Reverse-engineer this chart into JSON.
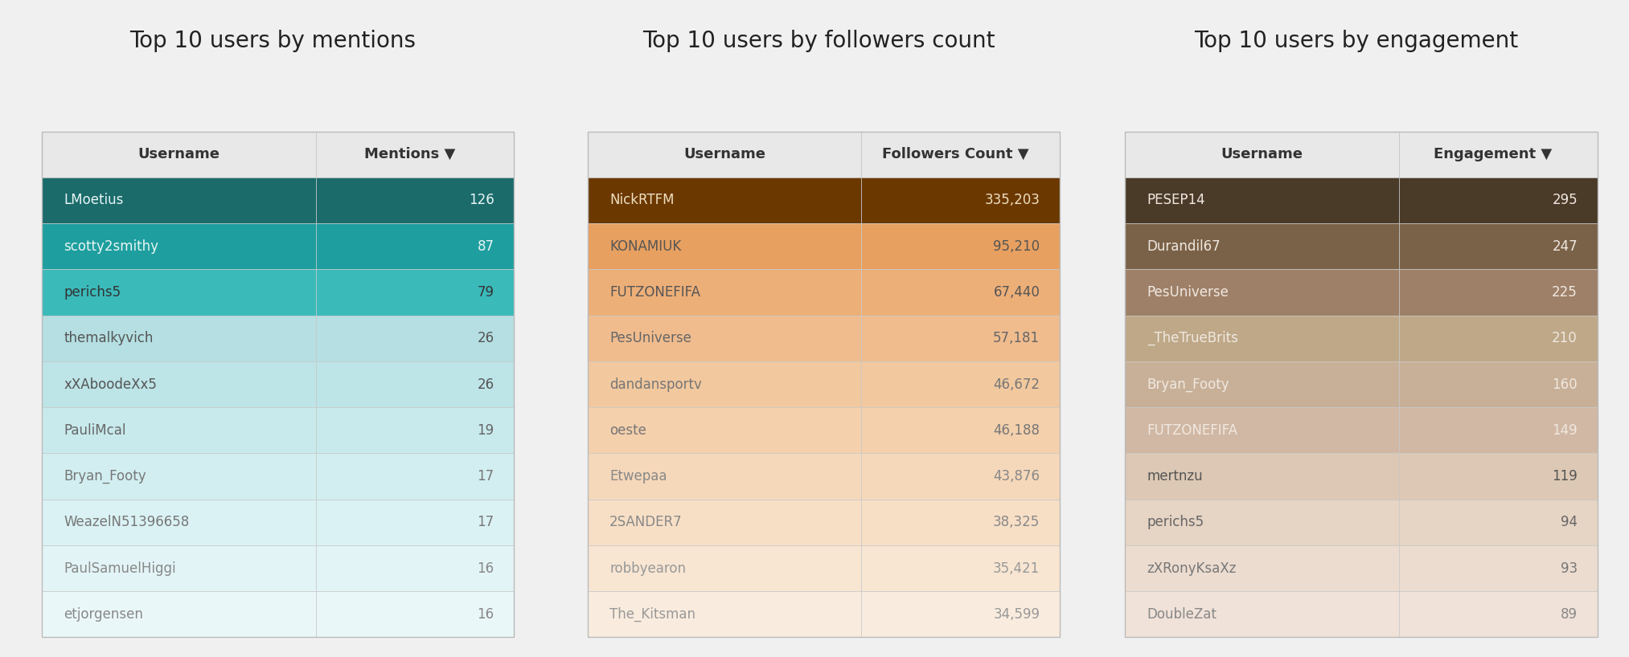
{
  "title1": "Top 10 users by mentions",
  "title2": "Top 10 users by followers count",
  "title3": "Top 10 users by engagement",
  "table1": {
    "col1": "Username",
    "col2": "Mentions",
    "rows": [
      [
        "LMoetius",
        "126"
      ],
      [
        "scotty2smithy",
        "87"
      ],
      [
        "perichs5",
        "79"
      ],
      [
        "themalkyvich",
        "26"
      ],
      [
        "xXAboodeXx5",
        "26"
      ],
      [
        "PauliMcal",
        "19"
      ],
      [
        "Bryan_Footy",
        "17"
      ],
      [
        "WeazelN51396658",
        "17"
      ],
      [
        "PaulSamuelHiggi",
        "16"
      ],
      [
        "etjorgensen",
        "16"
      ]
    ],
    "row_colors": [
      "#1b6b6b",
      "#1e9e9e",
      "#3bbaba",
      "#b5dfe2",
      "#bde4e7",
      "#c8eaec",
      "#d2eef0",
      "#daf2f4",
      "#e2f4f6",
      "#eaf7f8"
    ],
    "text_colors": [
      "#e8f5f5",
      "#e8f5f5",
      "#333333",
      "#555555",
      "#555555",
      "#666666",
      "#777777",
      "#777777",
      "#888888",
      "#888888"
    ]
  },
  "table2": {
    "col1": "Username",
    "col2": "Followers Count",
    "rows": [
      [
        "NickRTFM",
        "335,203"
      ],
      [
        "KONAMIUK",
        "95,210"
      ],
      [
        "FUTZONEFIFA",
        "67,440"
      ],
      [
        "PesUniverse",
        "57,181"
      ],
      [
        "dandansportv",
        "46,672"
      ],
      [
        "oeste",
        "46,188"
      ],
      [
        "Etwepaa",
        "43,876"
      ],
      [
        "2SANDER7",
        "38,325"
      ],
      [
        "robbyearon",
        "35,421"
      ],
      [
        "The_Kitsman",
        "34,599"
      ]
    ],
    "row_colors": [
      "#6b3800",
      "#e8a060",
      "#edaf78",
      "#f0bc8e",
      "#f2c89e",
      "#f4d0ac",
      "#f5d8ba",
      "#f7dfc6",
      "#f8e6d2",
      "#f9ecde"
    ],
    "text_colors": [
      "#f0e0c0",
      "#555555",
      "#555555",
      "#666666",
      "#777777",
      "#777777",
      "#888888",
      "#888888",
      "#999999",
      "#999999"
    ]
  },
  "table3": {
    "col1": "Username",
    "col2": "Engagement",
    "rows": [
      [
        "PESEP14",
        "295"
      ],
      [
        "Durandil67",
        "247"
      ],
      [
        "PesUniverse",
        "225"
      ],
      [
        "_TheTrueBrits",
        "210"
      ],
      [
        "Bryan_Footy",
        "160"
      ],
      [
        "FUTZONEFIFA",
        "149"
      ],
      [
        "mertnzu",
        "119"
      ],
      [
        "perichs5",
        "94"
      ],
      [
        "zXRonyKsaXz",
        "93"
      ],
      [
        "DoubleZat",
        "89"
      ]
    ],
    "row_colors": [
      "#4a3a28",
      "#7a6248",
      "#9e8068",
      "#bea888",
      "#c8b098",
      "#d0b8a4",
      "#dcc8b4",
      "#e6d4c4",
      "#ecdcd0",
      "#f0e2d8"
    ],
    "text_colors": [
      "#f0e8e0",
      "#f0e8e0",
      "#f0e8e0",
      "#f0e8e0",
      "#f0e8e0",
      "#f0e8e0",
      "#555555",
      "#666666",
      "#777777",
      "#888888"
    ]
  },
  "bg_color": "#f0f0f0",
  "header_bg": "#e8e8e8",
  "header_text": "#333333",
  "title_fontsize": 20,
  "header_fontsize": 13,
  "row_fontsize": 12,
  "col_split": 0.58
}
